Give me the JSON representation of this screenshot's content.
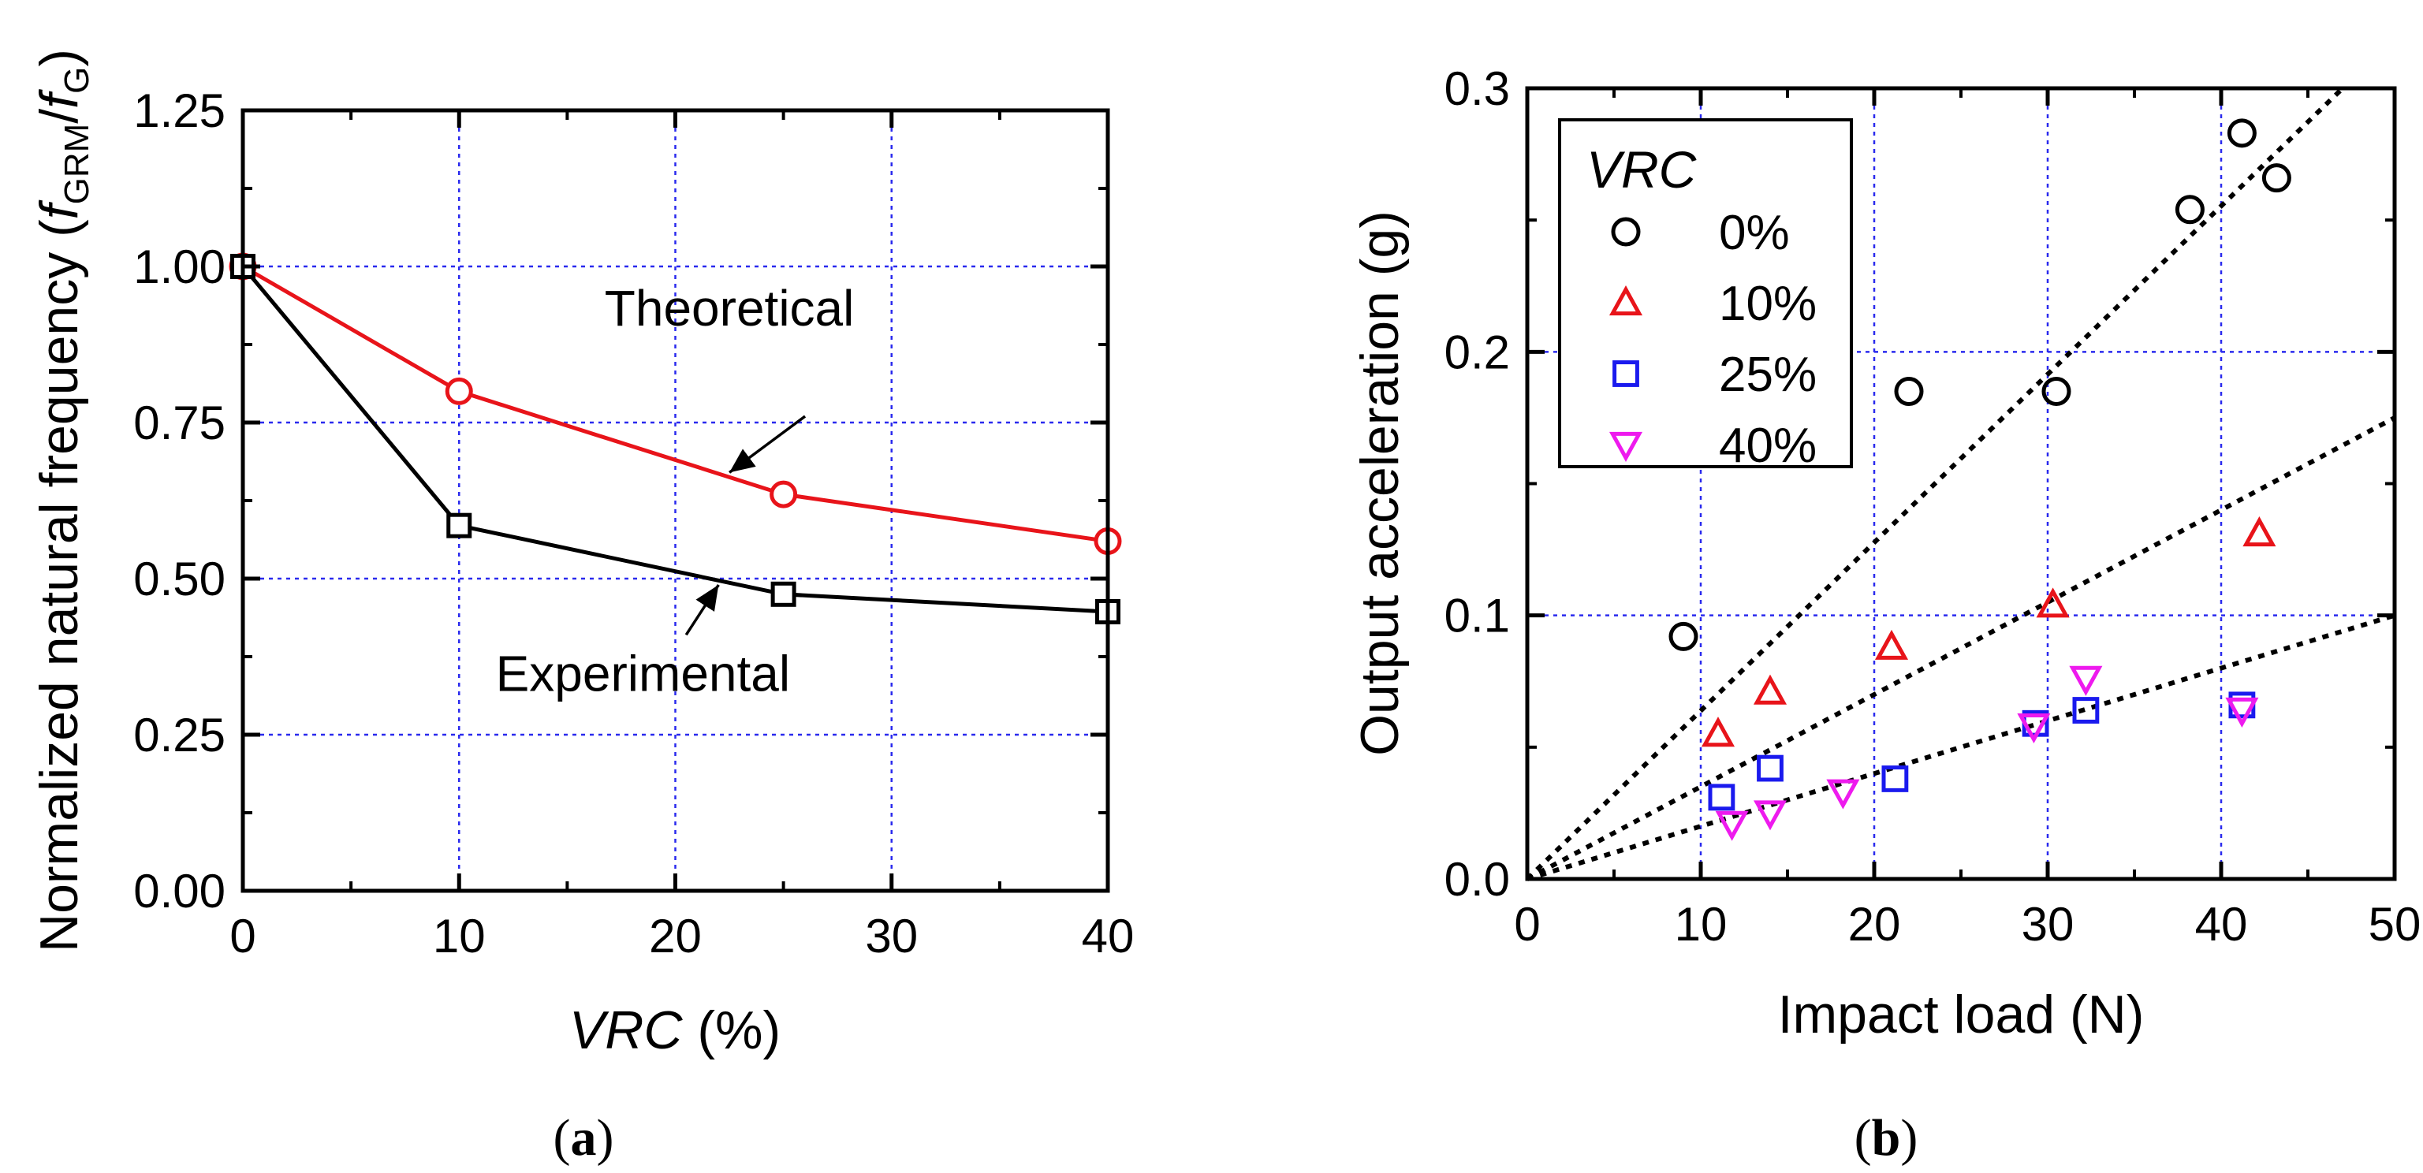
{
  "colors": {
    "black": "#000000",
    "red": "#e8141a",
    "blue": "#1a1aee",
    "magenta": "#ee1aee",
    "grid": "#2a2aee"
  },
  "chart_data": [
    {
      "id": "a",
      "type": "line",
      "panel_label": "(a)",
      "panel_letter": "a",
      "xlabel_italic": "VRC",
      "xlabel_rest": " (%)",
      "ylabel_main": "Normalized natural frequency (",
      "ylabel_f1": "f",
      "ylabel_sub1": "GRM",
      "ylabel_slash": "/",
      "ylabel_f2": "f",
      "ylabel_sub2": "G",
      "ylabel_close": ")",
      "xlim": [
        0,
        40
      ],
      "ylim": [
        0,
        1.25
      ],
      "xticks": [
        0,
        10,
        20,
        30,
        40
      ],
      "xtick_labels": [
        "0",
        "10",
        "20",
        "30",
        "40"
      ],
      "yticks": [
        0,
        0.25,
        0.5,
        0.75,
        1.0,
        1.25
      ],
      "ytick_labels": [
        "0.00",
        "0.25",
        "0.50",
        "0.75",
        "1.00",
        "1.25"
      ],
      "grid": true,
      "series": [
        {
          "name": "Theoretical",
          "marker": "circle",
          "color": "#e8141a",
          "x": [
            0,
            10,
            25,
            40
          ],
          "y": [
            1.0,
            0.8,
            0.635,
            0.56
          ]
        },
        {
          "name": "Experimental",
          "marker": "square",
          "color": "#000000",
          "x": [
            0,
            10,
            25,
            40
          ],
          "y": [
            1.0,
            0.585,
            0.475,
            0.447
          ]
        }
      ],
      "annotations": [
        {
          "text": "Theoretical",
          "series": "Theoretical",
          "label_at": [
            22.5,
            0.905
          ],
          "arrow_from": [
            26,
            0.76
          ],
          "arrow_to": [
            22.5,
            0.67
          ]
        },
        {
          "text": "Experimental",
          "series": "Experimental",
          "label_at": [
            18.5,
            0.32
          ],
          "arrow_from": [
            20.5,
            0.41
          ],
          "arrow_to": [
            22,
            0.49
          ]
        }
      ]
    },
    {
      "id": "b",
      "type": "scatter",
      "panel_label": "(b)",
      "panel_letter": "b",
      "xlabel": "Impact load (N)",
      "ylabel": "Output acceleration (g)",
      "xlim": [
        0,
        50
      ],
      "ylim": [
        0,
        0.3
      ],
      "xticks": [
        0,
        10,
        20,
        30,
        40,
        50
      ],
      "xtick_labels": [
        "0",
        "10",
        "20",
        "30",
        "40",
        "50"
      ],
      "yticks": [
        0,
        0.1,
        0.2,
        0.3
      ],
      "ytick_labels": [
        "0.0",
        "0.1",
        "0.2",
        "0.3"
      ],
      "grid": true,
      "legend_title": "VRC",
      "legend_position": "top-left",
      "series": [
        {
          "name": "0%",
          "marker": "circle",
          "color": "#000000",
          "x": [
            9,
            22,
            30.5,
            38.2,
            41.2,
            43.2
          ],
          "y": [
            0.092,
            0.185,
            0.185,
            0.254,
            0.283,
            0.266
          ]
        },
        {
          "name": "10%",
          "marker": "triangle-up",
          "color": "#e8141a",
          "x": [
            11,
            14,
            21,
            30.3,
            42.2
          ],
          "y": [
            0.055,
            0.071,
            0.088,
            0.104,
            0.131
          ]
        },
        {
          "name": "25%",
          "marker": "square",
          "color": "#1a1aee",
          "x": [
            11.2,
            14,
            21.2,
            29.3,
            32.2,
            41.2
          ],
          "y": [
            0.031,
            0.042,
            0.038,
            0.059,
            0.064,
            0.066
          ]
        },
        {
          "name": "40%",
          "marker": "triangle-down",
          "color": "#ee1aee",
          "x": [
            11.8,
            14,
            18.2,
            29.2,
            32.2,
            41.2
          ],
          "y": [
            0.021,
            0.025,
            0.033,
            0.058,
            0.076,
            0.064
          ]
        }
      ],
      "fit_lines": [
        {
          "series": "0%",
          "from": [
            0,
            0
          ],
          "to": [
            47,
            0.3
          ]
        },
        {
          "series": "10%",
          "from": [
            0,
            0
          ],
          "to": [
            50,
            0.175
          ]
        },
        {
          "series": "25% / 40%",
          "from": [
            0,
            0
          ],
          "to": [
            50,
            0.1
          ]
        }
      ]
    }
  ]
}
